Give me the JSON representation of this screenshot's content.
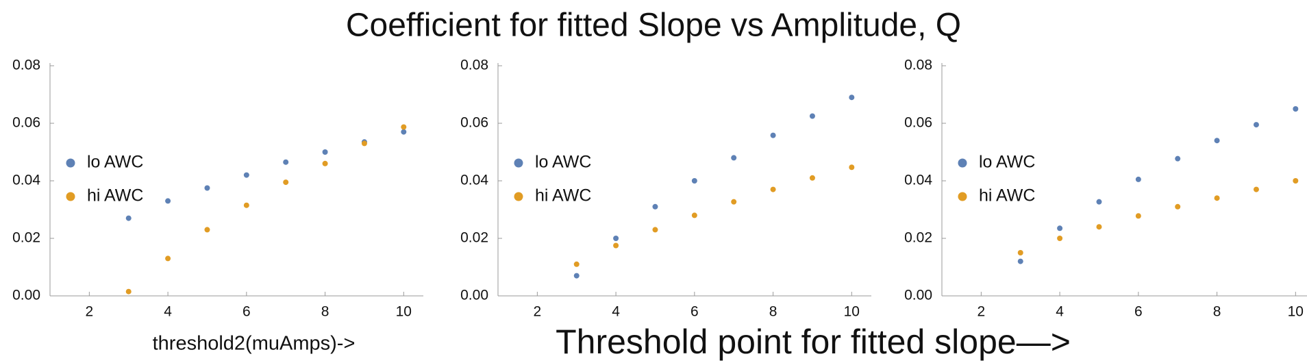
{
  "title": "Coefficient for fitted Slope vs Amplitude, Q",
  "footer": "Threshold point for fitted slope—>",
  "chart_data": [
    {
      "type": "scatter",
      "xlabel": "threshold2(muAmps)->",
      "xlim": [
        1,
        10.5
      ],
      "xticks": [
        2,
        4,
        6,
        8,
        10
      ],
      "ylim": [
        0,
        0.08
      ],
      "yticks": [
        {
          "value": 0,
          "label": "0.00"
        },
        {
          "value": 0.02,
          "label": "0.02"
        },
        {
          "value": 0.04,
          "label": "0.04"
        },
        {
          "value": 0.06,
          "label": "0.06"
        },
        {
          "value": 0.08,
          "label": "0.08"
        }
      ],
      "series": [
        {
          "name": "lo AWC",
          "color": "#5e81b5",
          "x": [
            3,
            4,
            5,
            6,
            7,
            8,
            9,
            10
          ],
          "values": [
            0.027,
            0.033,
            0.0375,
            0.042,
            0.0465,
            0.05,
            0.0535,
            0.057
          ]
        },
        {
          "name": "hi AWC",
          "color": "#e19c24",
          "x": [
            3,
            4,
            5,
            6,
            7,
            8,
            9,
            10
          ],
          "values": [
            0.0015,
            0.013,
            0.023,
            0.0315,
            0.0395,
            0.046,
            0.053,
            0.0587
          ]
        }
      ]
    },
    {
      "type": "scatter",
      "xlim": [
        1,
        10.5
      ],
      "xticks": [
        2,
        4,
        6,
        8,
        10
      ],
      "ylim": [
        0,
        0.08
      ],
      "yticks": [
        {
          "value": 0,
          "label": "0.00"
        },
        {
          "value": 0.02,
          "label": "0.02"
        },
        {
          "value": 0.04,
          "label": "0.04"
        },
        {
          "value": 0.06,
          "label": "0.06"
        },
        {
          "value": 0.08,
          "label": "0.08"
        }
      ],
      "series": [
        {
          "name": "lo AWC",
          "color": "#5e81b5",
          "x": [
            3,
            4,
            5,
            6,
            7,
            8,
            9,
            10
          ],
          "values": [
            0.007,
            0.02,
            0.031,
            0.04,
            0.048,
            0.0558,
            0.0625,
            0.069
          ]
        },
        {
          "name": "hi AWC",
          "color": "#e19c24",
          "x": [
            3,
            4,
            5,
            6,
            7,
            8,
            9,
            10
          ],
          "values": [
            0.011,
            0.0175,
            0.023,
            0.028,
            0.0327,
            0.037,
            0.041,
            0.0447
          ]
        }
      ]
    },
    {
      "type": "scatter",
      "xlim": [
        1,
        10.5
      ],
      "xticks": [
        2,
        4,
        6,
        8,
        10
      ],
      "ylim": [
        0,
        0.08
      ],
      "yticks": [
        {
          "value": 0,
          "label": "0.00"
        },
        {
          "value": 0.02,
          "label": "0.02"
        },
        {
          "value": 0.04,
          "label": "0.04"
        },
        {
          "value": 0.06,
          "label": "0.06"
        },
        {
          "value": 0.08,
          "label": "0.08"
        }
      ],
      "series": [
        {
          "name": "lo AWC",
          "color": "#5e81b5",
          "x": [
            3,
            4,
            5,
            6,
            7,
            8,
            9,
            10
          ],
          "values": [
            0.012,
            0.0235,
            0.0327,
            0.0405,
            0.0477,
            0.054,
            0.0595,
            0.065
          ]
        },
        {
          "name": "hi AWC",
          "color": "#e19c24",
          "x": [
            3,
            4,
            5,
            6,
            7,
            8,
            9,
            10
          ],
          "values": [
            0.015,
            0.02,
            0.024,
            0.0278,
            0.031,
            0.034,
            0.037,
            0.04
          ]
        }
      ]
    }
  ]
}
